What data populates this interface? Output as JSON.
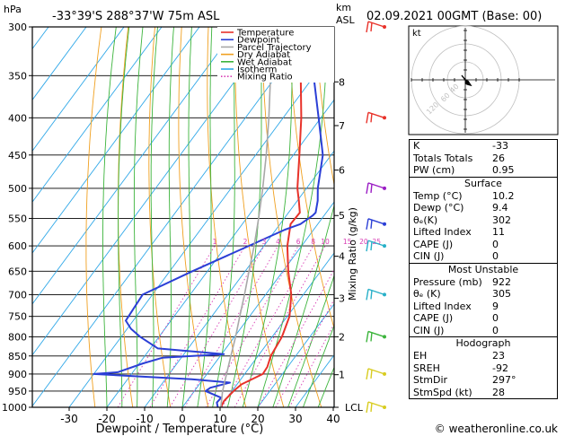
{
  "header": {
    "hpa_label": "hPa",
    "station": "-33°39'S 288°37'W 75m ASL",
    "km_label": "km",
    "asl_label": "ASL",
    "datetime": "02.09.2021 00GMT (Base: 00)"
  },
  "legend": [
    {
      "label": "Temperature",
      "color": "#e8322a",
      "style": "solid"
    },
    {
      "label": "Dewpoint",
      "color": "#2b3fd6",
      "style": "solid"
    },
    {
      "label": "Parcel Trajectory",
      "color": "#a8a8a8",
      "style": "solid"
    },
    {
      "label": "Dry Adiabat",
      "color": "#f0a020",
      "style": "solid"
    },
    {
      "label": "Wet Adiabat",
      "color": "#3cb43c",
      "style": "solid"
    },
    {
      "label": "Isotherm",
      "color": "#30a8e8",
      "style": "solid"
    },
    {
      "label": "Mixing Ratio",
      "color": "#d83cb4",
      "style": "dotted"
    }
  ],
  "chart_data": {
    "type": "line",
    "title": "-33°39'S 288°37'W 75m ASL",
    "xlabel": "Dewpoint / Temperature (°C)",
    "ylabel": "hPa",
    "y_scale": "log",
    "y_direction": "inverted",
    "xlim": [
      -35,
      40
    ],
    "ylim": [
      1000,
      300
    ],
    "x_ticks": [
      "-30",
      "-20",
      "-10",
      "0",
      "10",
      "20",
      "30",
      "40"
    ],
    "pressure_levels": [
      "300",
      "350",
      "400",
      "450",
      "500",
      "550",
      "600",
      "650",
      "700",
      "750",
      "800",
      "850",
      "900",
      "950",
      "1000"
    ],
    "km_ticks": [
      {
        "label": "8",
        "p": 357
      },
      {
        "label": "7",
        "p": 410
      },
      {
        "label": "6",
        "p": 472
      },
      {
        "label": "5",
        "p": 545
      },
      {
        "label": "4",
        "p": 620
      },
      {
        "label": "3",
        "p": 708
      },
      {
        "label": "2",
        "p": 800
      },
      {
        "label": "1",
        "p": 902
      },
      {
        "label": "LCL",
        "p": 1000
      }
    ],
    "right_axis_label": "Mixing Ratio (g/kg)",
    "mixing_ratio_labels": [
      "1",
      "2",
      "3",
      "4",
      "6",
      "8",
      "10",
      "15",
      "20",
      "25"
    ],
    "mixing_ratio_values": [
      1,
      2,
      3,
      4,
      6,
      8,
      10,
      15,
      20,
      25
    ],
    "series": [
      {
        "name": "Temperature",
        "color": "#e8322a",
        "points": [
          [
            1000,
            10.2
          ],
          [
            980,
            9.8
          ],
          [
            950,
            10.4
          ],
          [
            930,
            11.2
          ],
          [
            900,
            14.8
          ],
          [
            880,
            14.6
          ],
          [
            850,
            13.4
          ],
          [
            800,
            12.6
          ],
          [
            750,
            10.6
          ],
          [
            700,
            6.8
          ],
          [
            650,
            1.4
          ],
          [
            600,
            -3.8
          ],
          [
            560,
            -7.2
          ],
          [
            540,
            -7.0
          ],
          [
            520,
            -9.6
          ],
          [
            500,
            -12.4
          ],
          [
            450,
            -18.4
          ],
          [
            400,
            -25.2
          ],
          [
            350,
            -33.6
          ],
          [
            300,
            -42.8
          ]
        ]
      },
      {
        "name": "Dewpoint",
        "color": "#2b3fd6",
        "points": [
          [
            1000,
            9.4
          ],
          [
            985,
            8.2
          ],
          [
            970,
            8.4
          ],
          [
            950,
            3.0
          ],
          [
            940,
            3.6
          ],
          [
            925,
            7.8
          ],
          [
            915,
            -3.0
          ],
          [
            900,
            -30.0
          ],
          [
            895,
            -24.0
          ],
          [
            870,
            -19.0
          ],
          [
            855,
            -15.0
          ],
          [
            845,
            0.6
          ],
          [
            830,
            -18.0
          ],
          [
            800,
            -25.0
          ],
          [
            780,
            -29.0
          ],
          [
            760,
            -32.0
          ],
          [
            700,
            -32.6
          ],
          [
            650,
            -24.0
          ],
          [
            600,
            -14.0
          ],
          [
            570,
            -7.6
          ],
          [
            560,
            -4.6
          ],
          [
            545,
            -3.0
          ],
          [
            540,
            -2.8
          ],
          [
            520,
            -4.6
          ],
          [
            500,
            -7.0
          ],
          [
            450,
            -12.2
          ],
          [
            400,
            -20.6
          ],
          [
            350,
            -30.2
          ],
          [
            320,
            -35.0
          ],
          [
            300,
            -37.8
          ]
        ]
      },
      {
        "name": "Parcel Trajectory",
        "color": "#a8a8a8",
        "points": [
          [
            1000,
            10.2
          ],
          [
            950,
            7.5
          ],
          [
            900,
            5.2
          ],
          [
            850,
            2.8
          ],
          [
            800,
            0.3
          ],
          [
            750,
            -2.6
          ],
          [
            700,
            -5.6
          ],
          [
            650,
            -9.0
          ],
          [
            600,
            -12.6
          ],
          [
            550,
            -16.8
          ],
          [
            500,
            -21.6
          ],
          [
            450,
            -27.2
          ],
          [
            400,
            -33.8
          ],
          [
            350,
            -41.6
          ],
          [
            300,
            -50.6
          ]
        ]
      }
    ]
  },
  "hodograph": {
    "units_label": "kt",
    "ring_labels": [
      "40",
      "60",
      "120"
    ]
  },
  "indices": {
    "k": {
      "label": "K",
      "value": "-33"
    },
    "totals": {
      "label": "Totals Totals",
      "value": "26"
    },
    "pw": {
      "label": "PW (cm)",
      "value": "0.95"
    },
    "surface": {
      "title": "Surface",
      "temp": {
        "label": "Temp (°C)",
        "value": "10.2"
      },
      "dewp": {
        "label": "Dewp (°C)",
        "value": "9.4"
      },
      "theta": {
        "label": "θₑ(K)",
        "value": "302"
      },
      "li": {
        "label": "Lifted Index",
        "value": "11"
      },
      "cape": {
        "label": "CAPE (J)",
        "value": "0"
      },
      "cin": {
        "label": "CIN (J)",
        "value": "0"
      }
    },
    "most_unstable": {
      "title": "Most Unstable",
      "pressure": {
        "label": "Pressure (mb)",
        "value": "922"
      },
      "theta": {
        "label": "θₑ (K)",
        "value": "305"
      },
      "li": {
        "label": "Lifted Index",
        "value": "9"
      },
      "cape": {
        "label": "CAPE (J)",
        "value": "0"
      },
      "cin": {
        "label": "CIN (J)",
        "value": "0"
      }
    },
    "hodograph_tbl": {
      "title": "Hodograph",
      "eh": {
        "label": "EH",
        "value": "23"
      },
      "sreh": {
        "label": "SREH",
        "value": "-92"
      },
      "stmdir": {
        "label": "StmDir",
        "value": "297°"
      },
      "stmspd": {
        "label": "StmSpd (kt)",
        "value": "28"
      }
    }
  },
  "copyright": "© weatheronline.co.uk",
  "colors": {
    "temperature": "#e8322a",
    "dewpoint": "#2b3fd6",
    "parcel": "#a8a8a8",
    "dry_adiabat": "#f0a020",
    "wet_adiabat": "#3cb43c",
    "isotherm": "#30a8e8",
    "mixing_ratio": "#d83cb4"
  },
  "wind_barb_colors": [
    "#e8322a",
    "#e8322a",
    "#9a1cc4",
    "#2b3fd6",
    "#28b0c8",
    "#28b0c8",
    "#3cb43c",
    "#d8cc20",
    "#d8cc20"
  ]
}
